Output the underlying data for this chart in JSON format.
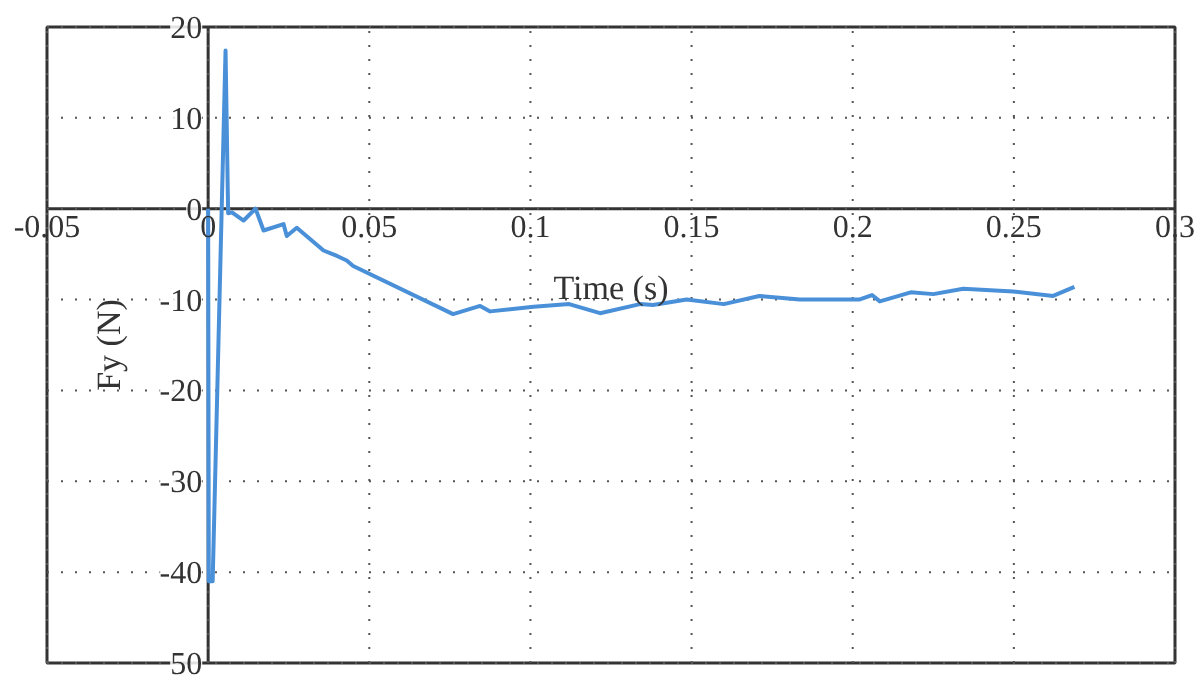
{
  "chart_data": {
    "type": "line",
    "xlabel": "Time (s)",
    "ylabel": "Fy (N)",
    "xlim": [
      -0.05,
      0.3
    ],
    "ylim": [
      -50,
      20
    ],
    "xticks": [
      -0.05,
      0,
      0.05,
      0.1,
      0.15,
      0.2,
      0.25,
      0.3
    ],
    "yticks": [
      20,
      10,
      0,
      -10,
      -20,
      -30,
      -40,
      {
        "value": -50,
        "label": "50"
      }
    ],
    "grid": true,
    "line_style": "solid",
    "marker": "none",
    "series": [
      {
        "color": "#4a90d9",
        "x": [
          0,
          0.0002,
          0.0014,
          0.0054,
          0.0062,
          0.0074,
          0.011,
          0.0147,
          0.0172,
          0.0234,
          0.0244,
          0.0275,
          0.0358,
          0.04,
          0.043,
          0.045,
          0.076,
          0.0844,
          0.0875,
          0.101,
          0.112,
          0.1216,
          0.134,
          0.138,
          0.1485,
          0.16,
          0.171,
          0.1836,
          0.202,
          0.206,
          0.2084,
          0.218,
          0.225,
          0.2343,
          0.2498,
          0.2622,
          0.2688
        ],
        "values": [
          0,
          -41,
          -41,
          17.4,
          -0.5,
          -0.4,
          -1.3,
          0,
          -2.4,
          -1.7,
          -3.0,
          -2.1,
          -4.6,
          -5.2,
          -5.7,
          -6.3,
          -11.6,
          -10.7,
          -11.3,
          -10.8,
          -10.5,
          -11.5,
          -10.5,
          -10.6,
          -10.0,
          -10.5,
          -9.6,
          -10.0,
          -10.0,
          -9.5,
          -10.2,
          -9.2,
          -9.4,
          -8.8,
          -9.1,
          -9.6,
          -8.6
        ]
      }
    ]
  }
}
